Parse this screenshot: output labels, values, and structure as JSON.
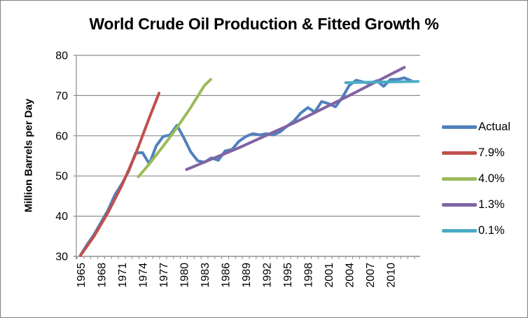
{
  "chart_data": {
    "type": "line",
    "title": "World Crude Oil Production & Fitted Growth %",
    "ylabel": "Million Barrels per Day",
    "xlabel": "",
    "ylim": [
      30,
      80
    ],
    "xlim": [
      1964.4,
      2014.3
    ],
    "y_ticks": [
      30,
      40,
      50,
      60,
      70,
      80
    ],
    "x_ticks": [
      1965,
      1968,
      1971,
      1974,
      1977,
      1980,
      1983,
      1986,
      1989,
      1992,
      1995,
      1998,
      2001,
      2004,
      2007,
      2010
    ],
    "grid": "horizontal",
    "legend_position": "right",
    "series": [
      {
        "name": "Actual",
        "color": "#4F81BD",
        "x": [
          1965,
          1966,
          1967,
          1968,
          1969,
          1970,
          1971,
          1972,
          1973,
          1974,
          1975,
          1976,
          1977,
          1978,
          1979,
          1980,
          1981,
          1982,
          1983,
          1984,
          1985,
          1986,
          1987,
          1988,
          1989,
          1990,
          1991,
          1992,
          1993,
          1994,
          1995,
          1996,
          1997,
          1998,
          1999,
          2000,
          2001,
          2002,
          2003,
          2004,
          2005,
          2006,
          2007,
          2008,
          2009,
          2010,
          2011,
          2012,
          2013
        ],
        "y": [
          30.3,
          33.0,
          35.5,
          38.5,
          41.5,
          45.3,
          48.0,
          51.2,
          55.7,
          55.8,
          53.0,
          57.5,
          59.8,
          60.2,
          62.6,
          59.5,
          56.0,
          53.8,
          53.4,
          54.5,
          53.9,
          56.2,
          56.6,
          58.6,
          59.8,
          60.5,
          60.2,
          60.5,
          60.2,
          61.0,
          62.4,
          63.7,
          65.7,
          67.0,
          65.9,
          68.5,
          68.0,
          67.2,
          69.5,
          72.5,
          73.8,
          73.4,
          73.0,
          73.7,
          72.3,
          74.0,
          74.0,
          74.4,
          73.7
        ]
      },
      {
        "name": "7.9%",
        "color": "#C0504D",
        "x": [
          1965,
          1967,
          1969,
          1971,
          1973,
          1975,
          1976.4
        ],
        "y": [
          30.2,
          35.1,
          40.9,
          47.6,
          55.4,
          64.5,
          70.6
        ]
      },
      {
        "name": "4.0%",
        "color": "#9BBB59",
        "x": [
          1973.4,
          1975,
          1977,
          1979,
          1981,
          1983,
          1983.9
        ],
        "y": [
          49.8,
          53.0,
          57.4,
          62.0,
          67.0,
          72.5,
          74.0
        ]
      },
      {
        "name": "1.3%",
        "color": "#8064A2",
        "x": [
          1980.4,
          1988,
          1996,
          2004,
          2012
        ],
        "y": [
          51.6,
          57.0,
          63.2,
          70.0,
          77.0
        ]
      },
      {
        "name": "0.1%",
        "color": "#4BACC6",
        "x": [
          2003.5,
          2014.0
        ],
        "y": [
          73.2,
          73.5
        ]
      }
    ]
  },
  "colors": {
    "grid": "#8C8C8C",
    "axis": "#8C8C8C",
    "text": "#000000",
    "frame_border": "#808080",
    "background": "#FFFFFF"
  }
}
